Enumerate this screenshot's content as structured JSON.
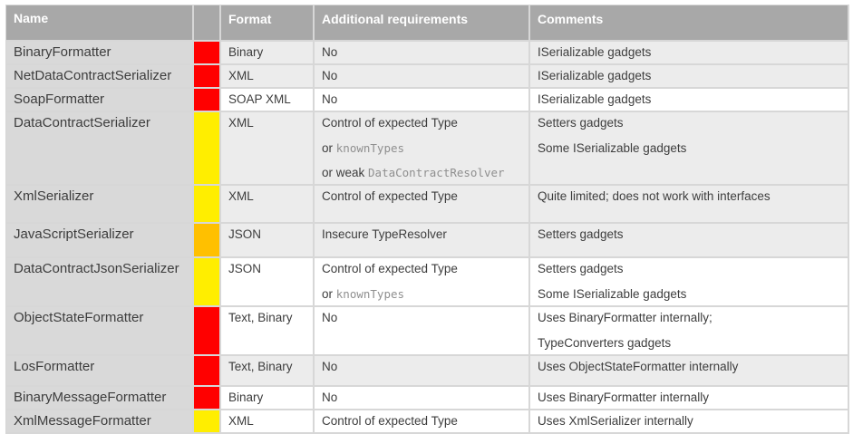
{
  "columns": {
    "name": "Name",
    "format": "Format",
    "requirements": "Additional requirements",
    "comments": "Comments"
  },
  "risk_colors": {
    "red": "#ff0000",
    "yellow": "#ffee00",
    "orange": "#ffc000"
  },
  "rows": [
    {
      "name": "BinaryFormatter",
      "risk": "red",
      "format": "Binary",
      "shaded": true,
      "requirements": [
        [
          {
            "text": "No"
          }
        ]
      ],
      "comments": [
        [
          {
            "text": "ISerializable gadgets"
          }
        ]
      ]
    },
    {
      "name": "NetDataContractSerializer",
      "risk": "red",
      "format": "XML",
      "shaded": true,
      "requirements": [
        [
          {
            "text": "No"
          }
        ]
      ],
      "comments": [
        [
          {
            "text": "ISerializable gadgets"
          }
        ]
      ]
    },
    {
      "name": "SoapFormatter",
      "risk": "red",
      "format": "SOAP XML",
      "shaded": false,
      "requirements": [
        [
          {
            "text": "No"
          }
        ]
      ],
      "comments": [
        [
          {
            "text": "ISerializable gadgets"
          }
        ]
      ]
    },
    {
      "name": "DataContractSerializer",
      "risk": "yellow",
      "format": "XML",
      "shaded": true,
      "requirements": [
        [
          {
            "text": "Control of expected Type"
          }
        ],
        [
          {
            "text": "or "
          },
          {
            "text": "knownTypes",
            "mono": true
          }
        ],
        [
          {
            "text": "or weak "
          },
          {
            "text": "DataContractResolver",
            "mono": true
          }
        ]
      ],
      "comments": [
        [
          {
            "text": "Setters gadgets"
          }
        ],
        [
          {
            "text": "Some ISerializable gadgets"
          }
        ]
      ]
    },
    {
      "name": "XmlSerializer",
      "risk": "yellow",
      "format": "XML",
      "shaded": true,
      "requirements": [
        [
          {
            "text": "Control of expected Type"
          }
        ]
      ],
      "comments": [
        [
          {
            "text": "Quite limited; does not work with interfaces"
          }
        ]
      ]
    },
    {
      "name": "JavaScriptSerializer",
      "risk": "orange",
      "format": "JSON",
      "shaded": true,
      "requirements": [
        [
          {
            "text": "Insecure TypeResolver"
          }
        ]
      ],
      "comments": [
        [
          {
            "text": "Setters gadgets"
          }
        ]
      ]
    },
    {
      "name": "DataContractJsonSerializer",
      "risk": "yellow",
      "format": "JSON",
      "shaded": false,
      "requirements": [
        [
          {
            "text": "Control of expected Type"
          }
        ],
        [
          {
            "text": "or "
          },
          {
            "text": "knownTypes",
            "mono": true
          }
        ]
      ],
      "comments": [
        [
          {
            "text": "Setters gadgets"
          }
        ],
        [
          {
            "text": "Some ISerializable gadgets"
          }
        ]
      ]
    },
    {
      "name": "ObjectStateFormatter",
      "risk": "red",
      "format": "Text, Binary",
      "shaded": false,
      "requirements": [
        [
          {
            "text": "No"
          }
        ]
      ],
      "comments": [
        [
          {
            "text": "Uses BinaryFormatter internally;"
          }
        ],
        [
          {
            "text": "TypeConverters gadgets"
          }
        ]
      ]
    },
    {
      "name": "LosFormatter",
      "risk": "red",
      "format": "Text, Binary",
      "shaded": true,
      "requirements": [
        [
          {
            "text": "No"
          }
        ]
      ],
      "comments": [
        [
          {
            "text": "Uses ObjectStateFormatter internally"
          }
        ]
      ]
    },
    {
      "name": "BinaryMessageFormatter",
      "risk": "red",
      "format": "Binary",
      "shaded": false,
      "requirements": [
        [
          {
            "text": "No"
          }
        ]
      ],
      "comments": [
        [
          {
            "text": "Uses BinaryFormatter internally"
          }
        ]
      ]
    },
    {
      "name": "XmlMessageFormatter",
      "risk": "yellow",
      "format": "XML",
      "shaded": false,
      "requirements": [
        [
          {
            "text": "Control of expected Type"
          }
        ]
      ],
      "comments": [
        [
          {
            "text": "Uses XmlSerializer internally"
          }
        ]
      ]
    }
  ]
}
